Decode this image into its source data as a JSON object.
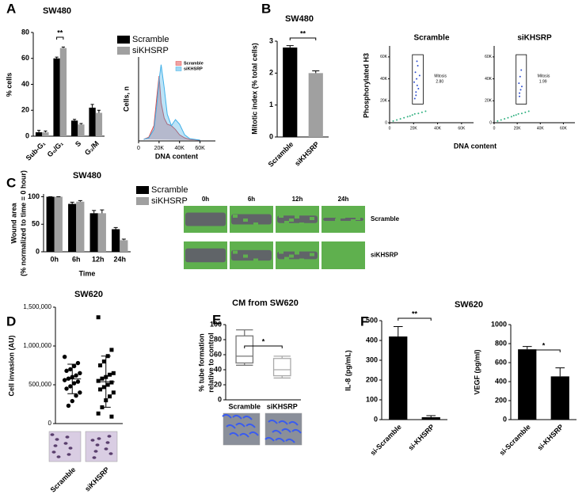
{
  "chart_data": [
    {
      "type": "bar",
      "panel": "A",
      "title": "SW480",
      "ylabel": "% cells",
      "categories": [
        "Sub-G₁",
        "G₀/G₁",
        "S",
        "G₂/M"
      ],
      "series": [
        {
          "name": "Scramble",
          "color": "#000000",
          "values": [
            3,
            60,
            12,
            22
          ],
          "errors": [
            1.5,
            1,
            1,
            2.5
          ]
        },
        {
          "name": "siKHSRP",
          "color": "#a0a0a0",
          "values": [
            3,
            68,
            9,
            18
          ],
          "errors": [
            1,
            0.8,
            0.8,
            2
          ]
        }
      ],
      "ylim": [
        0,
        80
      ],
      "yticks": [
        0,
        20,
        40,
        60,
        80
      ],
      "annotation": "**"
    },
    {
      "type": "area",
      "ylabel": "Cells, n",
      "xlabel": "DNA content",
      "x": [
        5000,
        10000,
        15000,
        18000,
        20000,
        22000,
        25000,
        28000,
        32000,
        36000,
        40000,
        45000,
        50000,
        60000
      ],
      "series": [
        {
          "name": "Scramble",
          "color": "#e04848",
          "values": [
            2,
            5,
            20,
            60,
            85,
            50,
            30,
            22,
            20,
            15,
            8,
            4,
            2,
            1
          ]
        },
        {
          "name": "siKHSRP",
          "color": "#40b0e8",
          "values": [
            2,
            4,
            15,
            50,
            80,
            100,
            70,
            35,
            20,
            28,
            22,
            8,
            3,
            1
          ]
        }
      ],
      "xlim": [
        0,
        75000
      ],
      "ylim": [
        0,
        110
      ],
      "xticks": [
        0,
        {
          "value": 20000,
          "label": "20K"
        },
        {
          "value": 40000,
          "label": "40K"
        },
        {
          "value": 60000,
          "label": "60K"
        }
      ]
    },
    {
      "type": "bar",
      "panel": "B",
      "title": "SW480",
      "ylabel": "Mitotic index (% total cells)",
      "categories": [
        "Scramble",
        "siKHSRP"
      ],
      "values": [
        2.8,
        2.0
      ],
      "errors": [
        0.06,
        0.07
      ],
      "colors": [
        "#000000",
        "#a0a0a0"
      ],
      "ylim": [
        0,
        3
      ],
      "yticks": [
        0,
        1,
        2,
        3
      ],
      "annotation": "**"
    },
    {
      "type": "scatter",
      "ylabel": "Phosphorylated H3",
      "xlabel": "DNA content",
      "xlim": [
        0,
        70000
      ],
      "ylim": [
        0,
        70000
      ],
      "xticks": [
        0,
        {
          "value": 20000,
          "label": "20K"
        },
        {
          "value": 40000,
          "label": "40K"
        },
        {
          "value": 60000,
          "label": "60K"
        }
      ],
      "yticks": [
        0,
        {
          "value": 20000,
          "label": "20K"
        },
        {
          "value": 40000,
          "label": "40K"
        },
        {
          "value": 60000,
          "label": "60K"
        }
      ],
      "gate_x": [
        19000,
        28000
      ],
      "gate_y": [
        17000,
        62000
      ],
      "gate_label": "Mitosis",
      "band_color": "#30b080",
      "series": [
        {
          "name": "Scramble",
          "color": "#3050d0",
          "gate_value": {
            "value": 2.8,
            "label": "2.80"
          },
          "x": [
            3000,
            6000,
            9000,
            12000,
            15000,
            17000,
            19000,
            21000,
            24000,
            27000,
            30000,
            21000,
            22000,
            23000,
            22500,
            21500,
            23500,
            22000,
            24000,
            20500,
            25000,
            22800
          ],
          "values": [
            1500,
            2500,
            3500,
            4500,
            5500,
            6000,
            7000,
            8000,
            8500,
            9500,
            10500,
            22000,
            28000,
            34000,
            40000,
            46000,
            52000,
            25000,
            31000,
            37000,
            43000,
            56000
          ]
        },
        {
          "name": "siKHSRP",
          "color": "#3050d0",
          "gate_value": 1.99,
          "x": [
            3000,
            6000,
            9000,
            12000,
            15000,
            17000,
            19000,
            21000,
            24000,
            27000,
            30000,
            22000,
            23000,
            21500,
            22500,
            23500,
            22000,
            24000
          ],
          "values": [
            1500,
            2500,
            3500,
            4500,
            5500,
            6500,
            7000,
            8000,
            8500,
            9500,
            10500,
            24000,
            30000,
            36000,
            42000,
            48000,
            27000,
            33000
          ]
        }
      ]
    },
    {
      "type": "bar",
      "panel": "C",
      "title": "SW480",
      "ylabel": [
        "Wound area",
        "(% normalized to time = 0 hour)"
      ],
      "xlabel": "Time",
      "categories": [
        "0h",
        "6h",
        "12h",
        "24h"
      ],
      "series": [
        {
          "name": "Scramble",
          "color": "#000000",
          "values": [
            100,
            87,
            70,
            41
          ],
          "errors": [
            0,
            3,
            5,
            3
          ]
        },
        {
          "name": "siKHSRP",
          "color": "#a0a0a0",
          "values": [
            100,
            91,
            70,
            21
          ],
          "errors": [
            0,
            2,
            6,
            2
          ]
        }
      ],
      "ylim": [
        0,
        105
      ],
      "yticks": [
        0,
        50,
        100
      ]
    },
    {
      "type": "image-grid",
      "columns": [
        "0h",
        "6h",
        "12h",
        "24h"
      ],
      "rows": [
        "Scramble",
        "siKHSRP"
      ]
    },
    {
      "type": "dot",
      "panel": "D",
      "title": "SW620",
      "ylabel": "Cell invasion (AU)",
      "categories": [
        "Scramble",
        "siKHSRP"
      ],
      "markers": [
        "circle",
        "square"
      ],
      "values": [
        [
          860000,
          780000,
          740000,
          700000,
          680000,
          650000,
          620000,
          600000,
          580000,
          560000,
          540000,
          520000,
          480000,
          450000,
          400000,
          360000,
          290000,
          230000
        ],
        [
          1370000,
          950000,
          870000,
          800000,
          750000,
          650000,
          630000,
          600000,
          580000,
          550000,
          530000,
          500000,
          470000,
          440000,
          400000,
          350000,
          300000,
          210000,
          130000,
          90000
        ]
      ],
      "mean": [
        575000,
        540000
      ],
      "sd": [
        190000,
        330000
      ],
      "ylim": [
        0,
        1500000
      ],
      "yticks": [
        0,
        {
          "value": 500000,
          "label": "500,000"
        },
        {
          "value": 1000000,
          "label": "1,000,000"
        },
        {
          "value": 1500000,
          "label": "1,500,000"
        }
      ]
    },
    {
      "type": "box",
      "panel": "E",
      "title": "CM from SW620",
      "ylabel": [
        "% tube formation",
        "relative to control"
      ],
      "categories": [
        "Scramble",
        "siKHSRP"
      ],
      "colors": [
        "#777777",
        "#aaaaaa"
      ],
      "boxes": [
        {
          "min": 46,
          "q1": 49,
          "median": 58,
          "q3": 85,
          "max": 93
        },
        {
          "min": 29,
          "q1": 32,
          "median": 40,
          "q3": 55,
          "max": 58
        }
      ],
      "ylim": [
        0,
        100
      ],
      "yticks": [
        0,
        20,
        40,
        60,
        80,
        100
      ],
      "annotation": "*"
    },
    {
      "type": "bar",
      "panel": "F",
      "title": "SW620",
      "ylabel": "IL-8 (pg/mL)",
      "categories": [
        "si-Scramble",
        "si-KHSRP"
      ],
      "values": [
        420,
        12
      ],
      "errors": [
        50,
        8
      ],
      "colors": [
        "#000000",
        "#000000"
      ],
      "ylim": [
        0,
        500
      ],
      "yticks": [
        0,
        100,
        200,
        300,
        400,
        500
      ],
      "annotation": "**"
    },
    {
      "type": "bar",
      "ylabel": "VEGF (pg/ml)",
      "categories": [
        "si-Scramble",
        "si-KHSRP"
      ],
      "values": [
        740,
        455
      ],
      "errors": [
        30,
        90
      ],
      "colors": [
        "#000000",
        "#000000"
      ],
      "ylim": [
        0,
        1000
      ],
      "yticks": [
        0,
        200,
        400,
        600,
        800,
        1000
      ],
      "annotation": "*"
    }
  ]
}
